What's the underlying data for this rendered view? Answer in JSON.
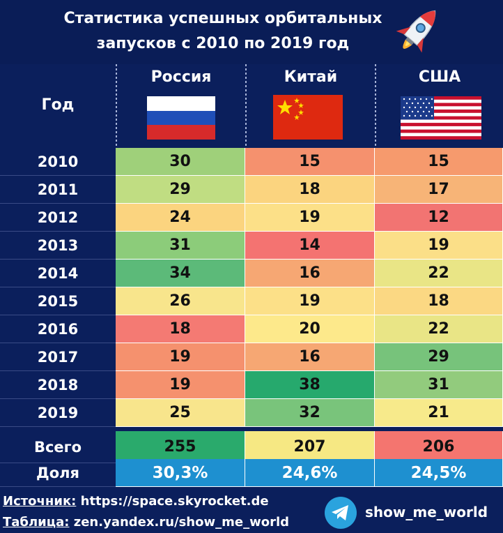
{
  "title": {
    "line1": "Статистика успешных орбитальных",
    "line2": "запусков с 2010 по 2019 год"
  },
  "header": {
    "year_label": "Год",
    "countries": [
      "Россия",
      "Китай",
      "США"
    ]
  },
  "chart_data": {
    "type": "table",
    "columns": [
      "Год",
      "Россия",
      "Китай",
      "США"
    ],
    "rows": [
      {
        "year": "2010",
        "values": [
          30,
          15,
          15
        ]
      },
      {
        "year": "2011",
        "values": [
          29,
          18,
          17
        ]
      },
      {
        "year": "2012",
        "values": [
          24,
          19,
          12
        ]
      },
      {
        "year": "2013",
        "values": [
          31,
          14,
          19
        ]
      },
      {
        "year": "2014",
        "values": [
          34,
          16,
          22
        ]
      },
      {
        "year": "2015",
        "values": [
          26,
          19,
          18
        ]
      },
      {
        "year": "2016",
        "values": [
          18,
          20,
          22
        ]
      },
      {
        "year": "2017",
        "values": [
          19,
          16,
          29
        ]
      },
      {
        "year": "2018",
        "values": [
          19,
          38,
          31
        ]
      },
      {
        "year": "2019",
        "values": [
          25,
          32,
          21
        ]
      }
    ],
    "total": {
      "label": "Всего",
      "values": [
        255,
        207,
        206
      ]
    },
    "share": {
      "label": "Доля",
      "values": [
        "30,3%",
        "24,6%",
        "24,5%"
      ]
    },
    "cell_colors": [
      [
        "#9fd07a",
        "#f5916e",
        "#f69a6d"
      ],
      [
        "#c0dd82",
        "#fbd47f",
        "#f7b477"
      ],
      [
        "#fbd47f",
        "#fce088",
        "#f27472"
      ],
      [
        "#8ccc7a",
        "#f47371",
        "#fbdf88"
      ],
      [
        "#5cba79",
        "#f6a773",
        "#e9e586"
      ],
      [
        "#f8e58c",
        "#fce088",
        "#fbd883"
      ],
      [
        "#f47a73",
        "#fde98b",
        "#e9e586"
      ],
      [
        "#f5916e",
        "#f6a773",
        "#77c37b"
      ],
      [
        "#f5916e",
        "#26a96d",
        "#92cb7d"
      ],
      [
        "#f8e58c",
        "#79c47b",
        "#f7ea8b"
      ]
    ],
    "total_colors": [
      "#2aaa6c",
      "#f6e883",
      "#f4756f"
    ],
    "share_color": "#1e90d0"
  },
  "footer": {
    "source_label": "Источник:",
    "source_value": " https://space.skyrocket.de",
    "table_label": "Таблица:",
    "table_value": " zen.yandex.ru/show_me_world",
    "channel": "show_me_world"
  },
  "icons": {
    "rocket": "rocket-icon",
    "telegram": "telegram-icon",
    "flags": [
      "russia-flag",
      "china-flag",
      "usa-flag"
    ]
  }
}
